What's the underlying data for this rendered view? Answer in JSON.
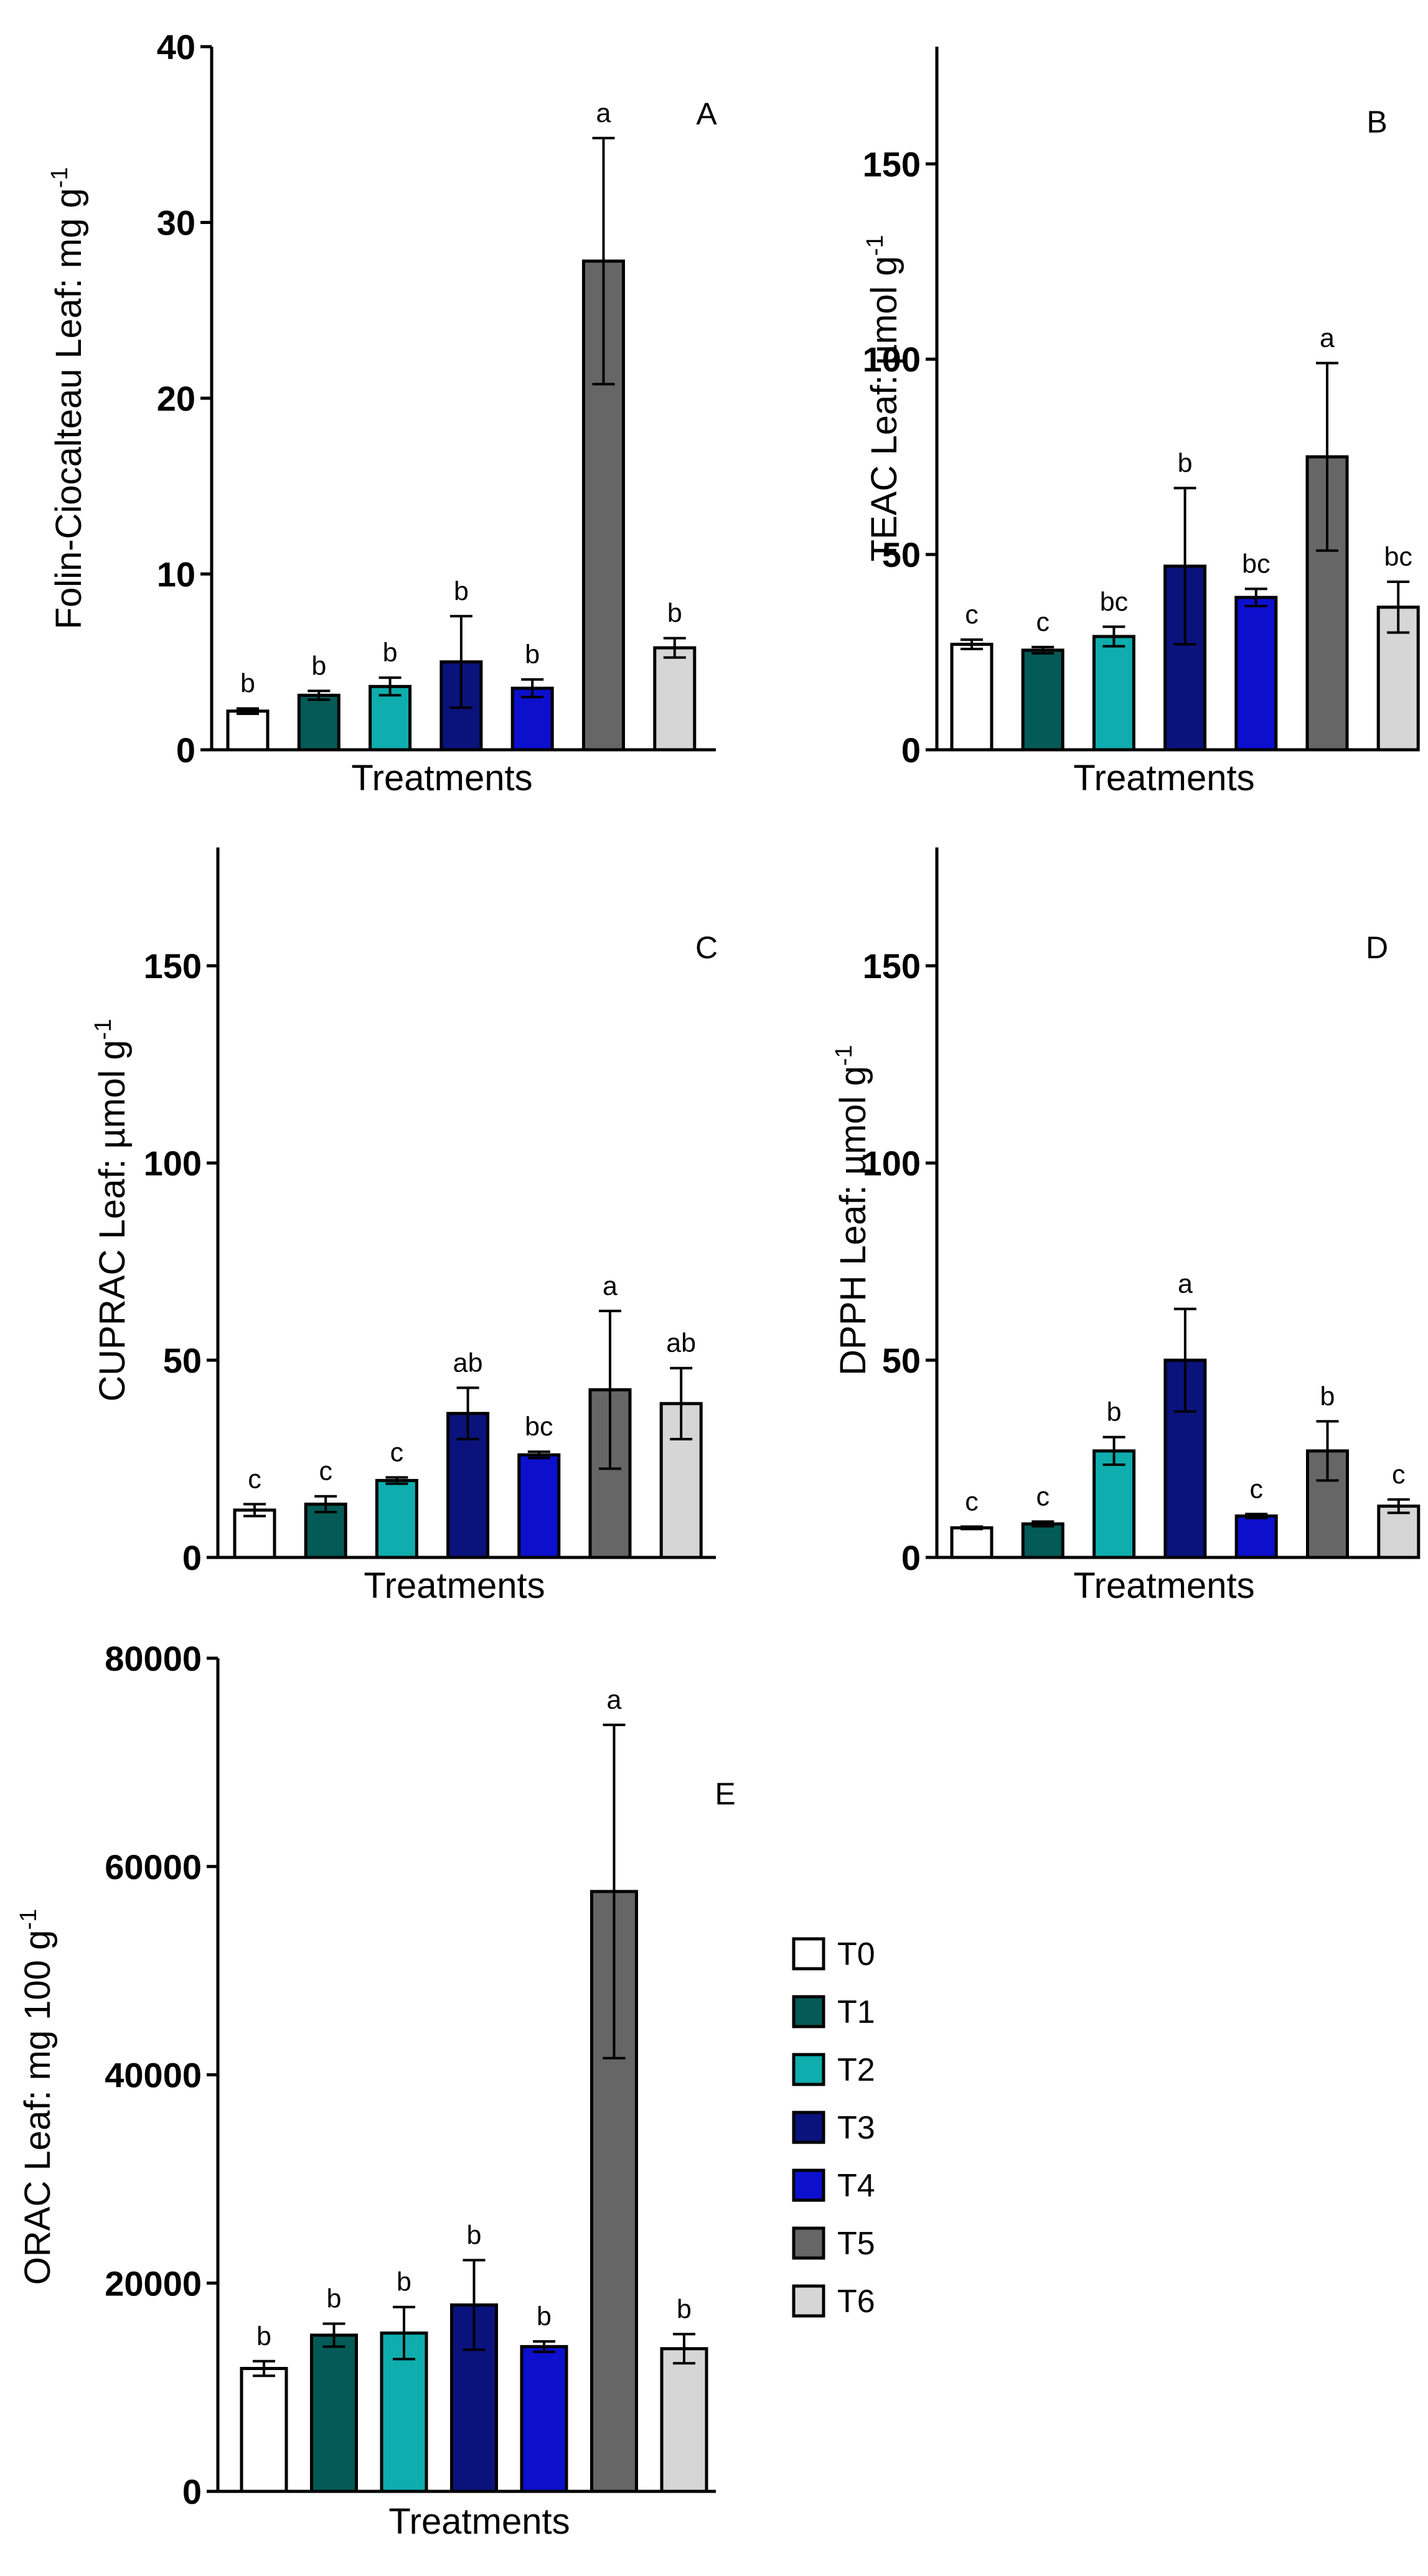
{
  "legend": {
    "items": [
      {
        "name": "T0",
        "color": "#ffffff"
      },
      {
        "name": "T1",
        "color": "#045a56"
      },
      {
        "name": "T2",
        "color": "#0fadad"
      },
      {
        "name": "T3",
        "color": "#0a127c"
      },
      {
        "name": "T4",
        "color": "#0c0fcc"
      },
      {
        "name": "T5",
        "color": "#666666"
      },
      {
        "name": "T6",
        "color": "#d6d6d6"
      }
    ]
  },
  "chart_data": [
    {
      "type": "bar",
      "panel": "A",
      "title": "",
      "xlabel": "Treatments",
      "ylabel": "Folin-Ciocalteau Leaf: mg g",
      "ylabel_sup": "-1",
      "ylim": [
        0,
        40
      ],
      "yticks": [
        "0",
        "10",
        "20",
        "30",
        "40"
      ],
      "categories": [
        "T0",
        "T1",
        "T2",
        "T3",
        "T4",
        "T5",
        "T6"
      ],
      "values": [
        2.2,
        3.1,
        3.6,
        5.0,
        3.5,
        27.8,
        5.8
      ],
      "errors": [
        0.15,
        0.25,
        0.5,
        2.6,
        0.5,
        7.0,
        0.55
      ],
      "significance": [
        "b",
        "b",
        "b",
        "b",
        "b",
        "a",
        "b"
      ]
    },
    {
      "type": "bar",
      "panel": "B",
      "title": "",
      "xlabel": "Treatments",
      "ylabel": "TEAC Leaf: µmol g",
      "ylabel_sup": "-1",
      "ylim": [
        0,
        180
      ],
      "yticks": [
        "0",
        "50",
        "100",
        "150"
      ],
      "categories": [
        "T0",
        "T1",
        "T2",
        "T3",
        "T4",
        "T5",
        "T6"
      ],
      "values": [
        27,
        25.5,
        29,
        47,
        39,
        75,
        36.5
      ],
      "errors": [
        1.2,
        0.8,
        2.5,
        20,
        2.2,
        24,
        6.5
      ],
      "significance": [
        "c",
        "c",
        "bc",
        "b",
        "bc",
        "a",
        "bc"
      ]
    },
    {
      "type": "bar",
      "panel": "C",
      "title": "",
      "xlabel": "Treatments",
      "ylabel": "CUPRAC Leaf: µmol g",
      "ylabel_sup": "-1",
      "ylim": [
        0,
        180
      ],
      "yticks": [
        "0",
        "50",
        "100",
        "150"
      ],
      "categories": [
        "T0",
        "T1",
        "T2",
        "T3",
        "T4",
        "T5",
        "T6"
      ],
      "values": [
        12,
        13.5,
        19.5,
        36.5,
        26,
        42.5,
        39
      ],
      "errors": [
        1.5,
        2,
        0.8,
        6.5,
        0.8,
        20,
        9
      ],
      "significance": [
        "c",
        "c",
        "c",
        "ab",
        "bc",
        "a",
        "ab"
      ]
    },
    {
      "type": "bar",
      "panel": "D",
      "title": "",
      "xlabel": "Treatments",
      "ylabel": "DPPH Leaf: µmol g",
      "ylabel_sup": "-1",
      "ylim": [
        0,
        180
      ],
      "yticks": [
        "0",
        "50",
        "100",
        "150"
      ],
      "categories": [
        "T0",
        "T1",
        "T2",
        "T3",
        "T4",
        "T5",
        "T6"
      ],
      "values": [
        7.5,
        8.5,
        27,
        50,
        10.5,
        27,
        13
      ],
      "errors": [
        0.3,
        0.6,
        3.5,
        13,
        0.5,
        7.5,
        1.7
      ],
      "significance": [
        "c",
        "c",
        "b",
        "a",
        "c",
        "b",
        "c"
      ]
    },
    {
      "type": "bar",
      "panel": "E",
      "title": "",
      "xlabel": "Treatments",
      "ylabel": "ORAC Leaf: mg 100 g",
      "ylabel_sup": "-1",
      "ylim": [
        0,
        80000
      ],
      "yticks": [
        "0",
        "20000",
        "40000",
        "60000",
        "80000"
      ],
      "categories": [
        "T0",
        "T1",
        "T2",
        "T3",
        "T4",
        "T5",
        "T6"
      ],
      "values": [
        11800,
        15000,
        15200,
        17900,
        13900,
        57600,
        13700
      ],
      "errors": [
        700,
        1100,
        2500,
        4300,
        500,
        16000,
        1400
      ],
      "significance": [
        "b",
        "b",
        "b",
        "b",
        "b",
        "a",
        "b"
      ]
    }
  ]
}
